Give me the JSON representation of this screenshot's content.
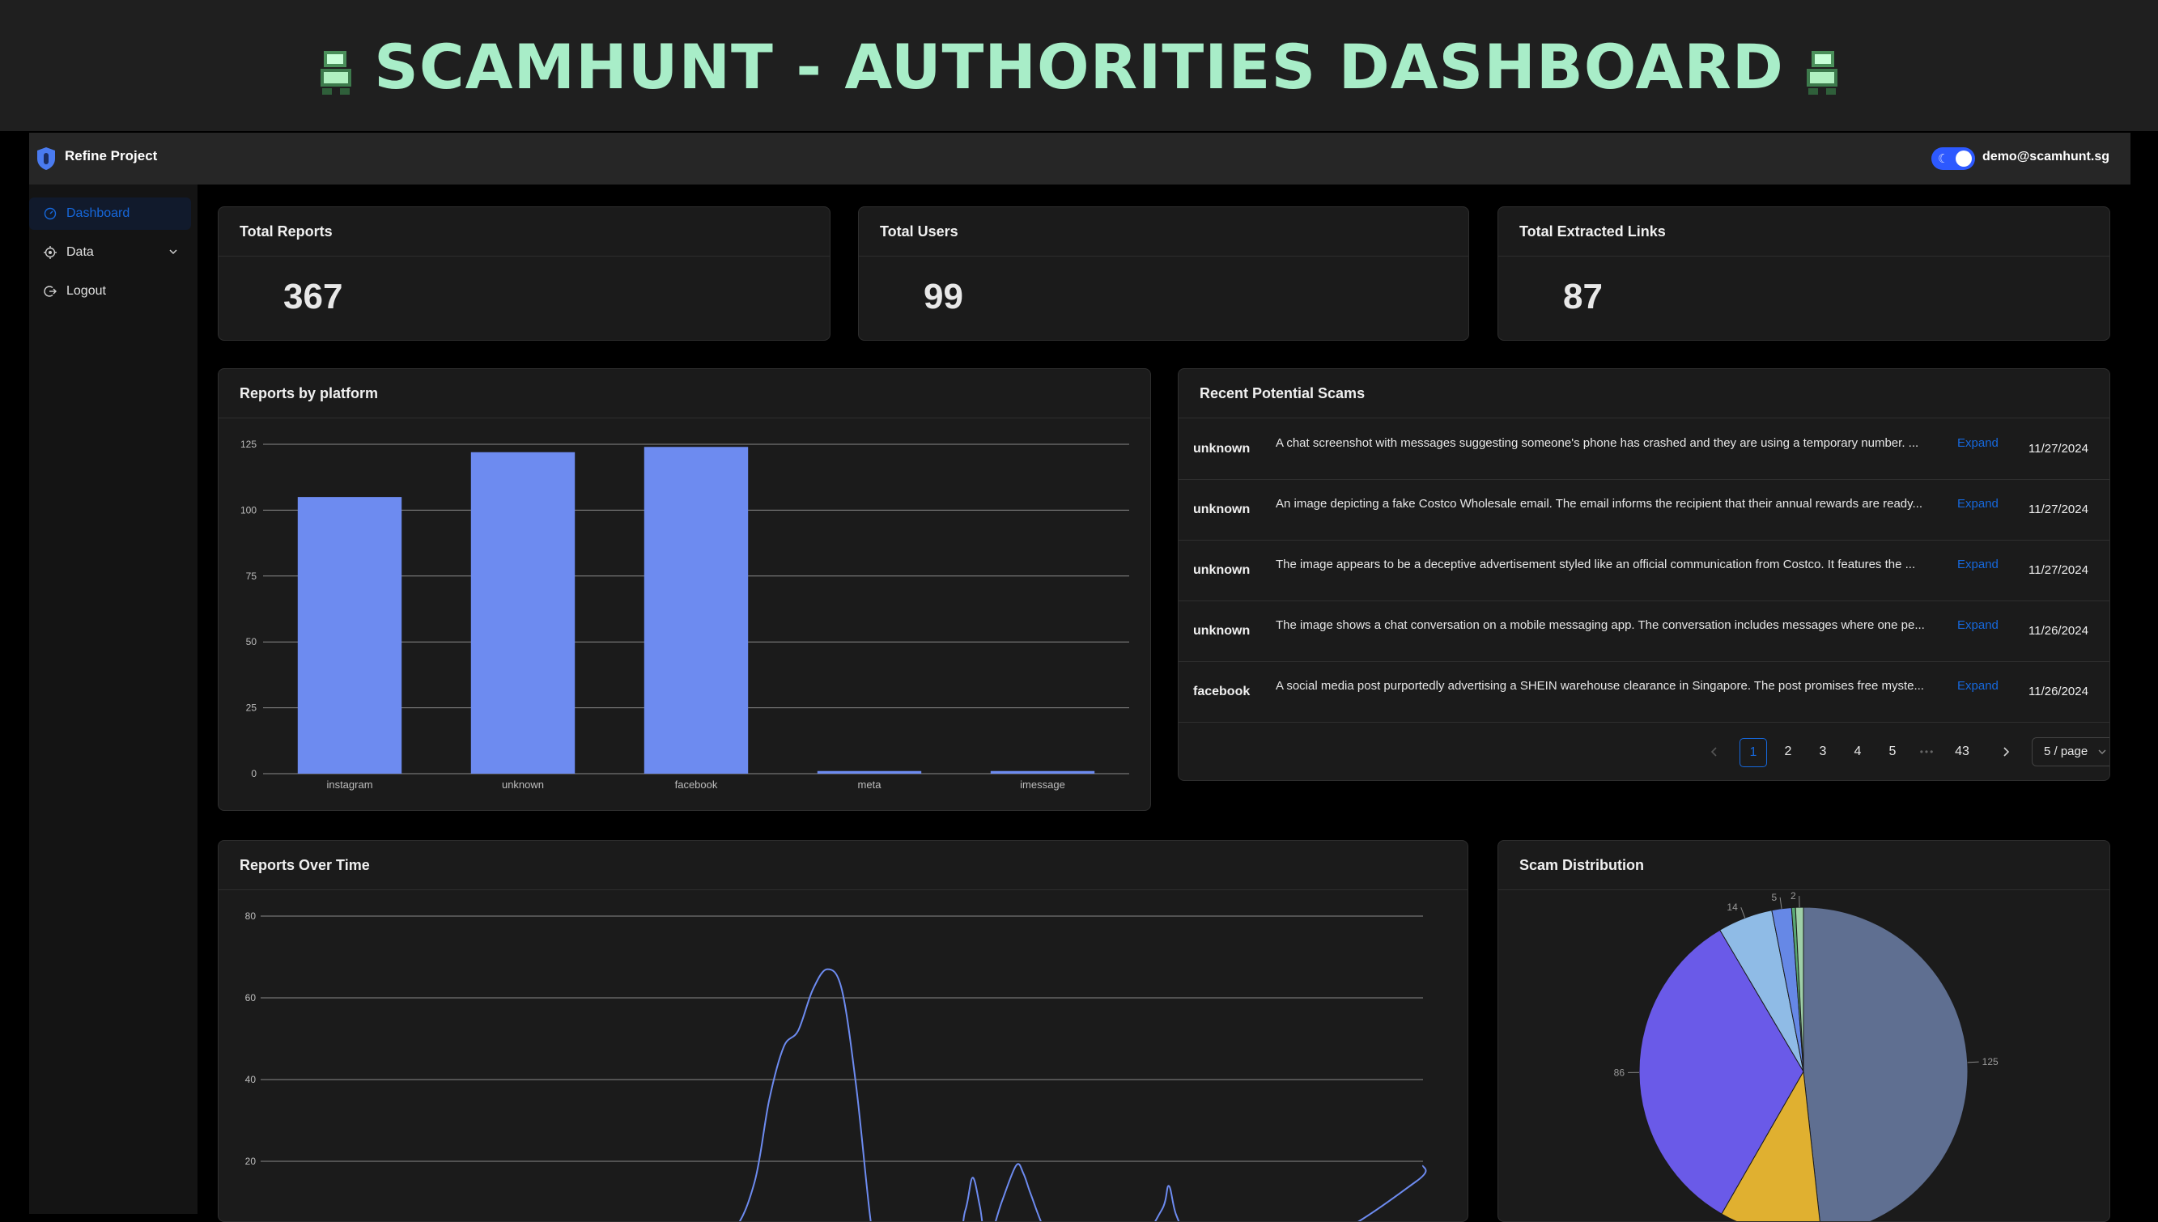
{
  "banner": {
    "title": "SCAMHUNT - AUTHORITIES DASHBOARD"
  },
  "header": {
    "app_name": "Refine Project",
    "user_email": "demo@scamhunt.sg",
    "theme_toggle_on": true
  },
  "sidebar": {
    "items": [
      {
        "label": "Dashboard",
        "icon": "dashboard-icon",
        "active": true
      },
      {
        "label": "Data",
        "icon": "data-icon",
        "expandable": true
      },
      {
        "label": "Logout",
        "icon": "logout-icon"
      }
    ]
  },
  "stats": [
    {
      "title": "Total Reports",
      "value": "367"
    },
    {
      "title": "Total Users",
      "value": "99"
    },
    {
      "title": "Total Extracted Links",
      "value": "87"
    }
  ],
  "platform_chart": {
    "title": "Reports by platform",
    "chart_data": {
      "type": "bar",
      "categories": [
        "instagram",
        "unknown",
        "facebook",
        "meta",
        "imessage"
      ],
      "values": [
        105,
        122,
        124,
        1,
        1
      ],
      "ylim": [
        0,
        125
      ],
      "yticks": [
        0,
        25,
        50,
        75,
        100,
        125
      ],
      "color": "#6d8bf0"
    }
  },
  "recent_scams": {
    "title": "Recent Potential Scams",
    "expand_label": "Expand",
    "rows": [
      {
        "platform": "unknown",
        "description": "A chat screenshot with messages suggesting someone's phone has crashed and they are using a temporary number. ...",
        "date": "11/27/2024"
      },
      {
        "platform": "unknown",
        "description": "An image depicting a fake Costco Wholesale email. The email informs the recipient that their annual rewards are ready...",
        "date": "11/27/2024"
      },
      {
        "platform": "unknown",
        "description": "The image appears to be a deceptive advertisement styled like an official communication from Costco. It features the ...",
        "date": "11/27/2024"
      },
      {
        "platform": "unknown",
        "description": "The image shows a chat conversation on a mobile messaging app. The conversation includes messages where one pe...",
        "date": "11/26/2024"
      },
      {
        "platform": "facebook",
        "description": "A social media post purportedly advertising a SHEIN warehouse clearance in Singapore. The post promises free myste...",
        "date": "11/26/2024"
      }
    ],
    "pagination": {
      "pages": [
        "1",
        "2",
        "3",
        "4",
        "5"
      ],
      "current": "1",
      "ellipsis": "•••",
      "last": "43",
      "page_size": "5 / page"
    }
  },
  "time_chart": {
    "title": "Reports Over Time",
    "chart_data": {
      "type": "line",
      "ylim": [
        0,
        80
      ],
      "yticks": [
        0,
        20,
        40,
        60,
        80
      ],
      "x": [
        0,
        50,
        60,
        65,
        68,
        70,
        72,
        74,
        76,
        78,
        80,
        82,
        84,
        85,
        95,
        97,
        98,
        99,
        100,
        102,
        104,
        105,
        106,
        108,
        110,
        120,
        124,
        125,
        126,
        128,
        130,
        145,
        159,
        160
      ],
      "values": [
        0,
        0,
        0,
        3,
        15,
        35,
        48,
        52,
        62,
        67,
        62,
        38,
        5,
        0,
        0,
        8,
        16,
        9,
        0,
        10,
        19,
        17,
        12,
        3,
        0,
        0,
        8,
        14,
        7,
        0,
        0,
        0,
        15,
        19
      ],
      "color": "#6d8bf0"
    }
  },
  "distribution_chart": {
    "title": "Scam Distribution",
    "chart_data": {
      "type": "pie",
      "values": [
        125,
        26,
        86,
        14,
        5,
        1,
        2
      ],
      "labels": [
        "125",
        "",
        "86",
        "14",
        "5",
        "",
        "2"
      ],
      "colors": [
        "#5f6f91",
        "#e0b030",
        "#6a5ae8",
        "#8fbbe6",
        "#6688e6",
        "#5aa874",
        "#9fd0a8"
      ]
    }
  }
}
